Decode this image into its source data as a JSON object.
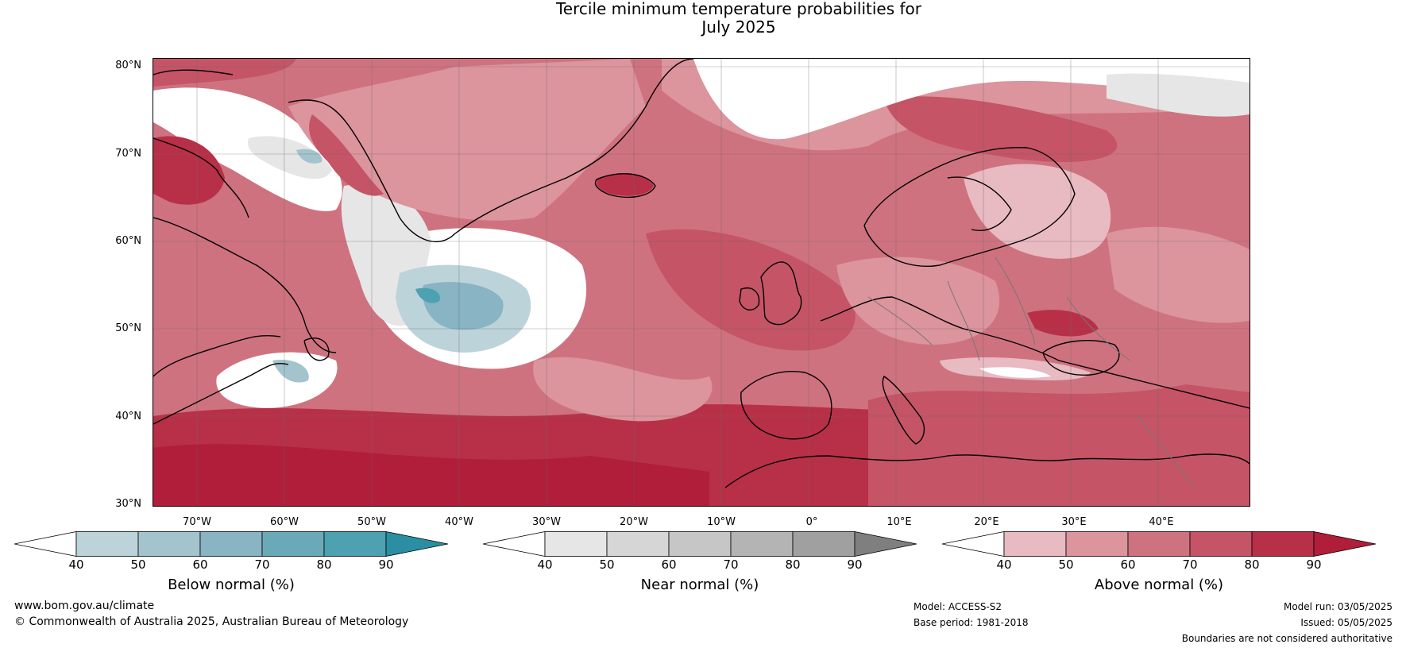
{
  "title_line1": "Tercile minimum temperature probabilities for",
  "title_line2": "July 2025",
  "lat_labels": [
    "80°N",
    "70°N",
    "60°N",
    "50°N",
    "40°N",
    "30°N"
  ],
  "lon_labels": [
    "70°W",
    "60°W",
    "50°W",
    "40°W",
    "30°W",
    "20°W",
    "10°W",
    "0°",
    "10°E",
    "20°E",
    "30°E",
    "40°E"
  ],
  "colorbars": [
    {
      "label": "Below normal (%)",
      "ticks": [
        "40",
        "50",
        "60",
        "70",
        "80",
        "90"
      ],
      "colors": [
        "#ffffff",
        "#bcd3da",
        "#a3c4cd",
        "#88b4c3",
        "#6aa9b8",
        "#4da1b1",
        "#2b8ea3"
      ]
    },
    {
      "label": "Near normal (%)",
      "ticks": [
        "40",
        "50",
        "60",
        "70",
        "80",
        "90"
      ],
      "colors": [
        "#ffffff",
        "#e6e6e6",
        "#d6d6d6",
        "#c6c6c6",
        "#b4b4b4",
        "#a0a0a0",
        "#7f7f7f"
      ]
    },
    {
      "label": "Above normal (%)",
      "ticks": [
        "40",
        "50",
        "60",
        "70",
        "80",
        "90"
      ],
      "colors": [
        "#ffffff",
        "#e8bac1",
        "#dc949d",
        "#cf727f",
        "#c55467",
        "#b83048",
        "#b01e3a"
      ]
    }
  ],
  "footer": {
    "website": "www.bom.gov.au/climate",
    "copyright": "© Commonwealth of Australia 2025, Australian Bureau of Meteorology",
    "model": "Model: ACCESS-S2",
    "base_period": "Base period: 1981-2018",
    "model_run": "Model run: 03/05/2025",
    "issued": "Issued: 05/05/2025",
    "disclaimer": "Boundaries are not considered authoritative"
  }
}
